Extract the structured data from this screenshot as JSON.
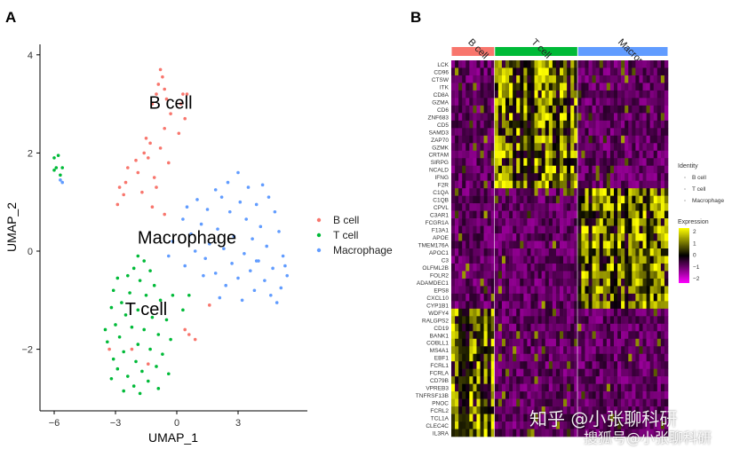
{
  "panels": {
    "a": "A",
    "b": "B"
  },
  "watermark": {
    "line1": "知乎 @小张聊科研",
    "line2": "搜狐号@小张聊科研"
  },
  "chart_data": [
    {
      "type": "scatter",
      "xlabel": "UMAP_1",
      "ylabel": "UMAP_2",
      "xlim": [
        -6.7,
        6.4
      ],
      "ylim": [
        -3.3,
        4.0
      ],
      "xticks": [
        -6,
        -3,
        0,
        3
      ],
      "yticks": [
        -2,
        0,
        2,
        4
      ],
      "legend_position": "right",
      "grid": false,
      "annotations": [
        {
          "text": "B cell",
          "x": -0.3,
          "y": 2.9
        },
        {
          "text": "Macrophage",
          "x": 0.5,
          "y": 0.15
        },
        {
          "text": "T cell",
          "x": -1.5,
          "y": -1.3
        }
      ],
      "series": [
        {
          "name": "B cell",
          "color": "#F8766D",
          "points": [
            [
              -0.8,
              3.7
            ],
            [
              -0.7,
              3.55
            ],
            [
              -0.9,
              3.4
            ],
            [
              -0.6,
              3.3
            ],
            [
              -1.0,
              3.2
            ],
            [
              -0.5,
              3.1
            ],
            [
              0.3,
              3.2
            ],
            [
              0.5,
              3.2
            ],
            [
              0.2,
              3.0
            ],
            [
              -1.2,
              3.0
            ],
            [
              -0.3,
              2.8
            ],
            [
              0.4,
              2.7
            ],
            [
              -0.6,
              2.5
            ],
            [
              0.1,
              2.4
            ],
            [
              -1.5,
              2.3
            ],
            [
              -1.3,
              2.2
            ],
            [
              -0.8,
              2.1
            ],
            [
              -1.4,
              1.9
            ],
            [
              -0.4,
              1.8
            ],
            [
              -2.0,
              1.85
            ],
            [
              -2.4,
              1.7
            ],
            [
              -1.9,
              1.6
            ],
            [
              -1.1,
              1.5
            ],
            [
              -2.8,
              1.3
            ],
            [
              -2.6,
              1.15
            ],
            [
              -1.7,
              1.2
            ],
            [
              -1.0,
              1.3
            ],
            [
              -2.9,
              0.95
            ],
            [
              -1.2,
              0.9
            ],
            [
              -0.6,
              0.75
            ],
            [
              -3.3,
              -2.0
            ],
            [
              -2.2,
              -2.0
            ],
            [
              -1.4,
              -2.3
            ],
            [
              1.6,
              -1.1
            ],
            [
              0.4,
              -1.6
            ],
            [
              0.9,
              -1.8
            ],
            [
              0.6,
              -1.7
            ],
            [
              -2.5,
              1.4
            ],
            [
              -1.6,
              2.0
            ]
          ]
        },
        {
          "name": "T cell",
          "color": "#00BA38",
          "points": [
            [
              -6.0,
              1.9
            ],
            [
              -5.8,
              1.95
            ],
            [
              -5.9,
              1.7
            ],
            [
              -6.0,
              1.65
            ],
            [
              -5.6,
              1.7
            ],
            [
              -5.7,
              1.55
            ],
            [
              -1.9,
              -0.1
            ],
            [
              -1.6,
              -0.2
            ],
            [
              -2.1,
              -0.35
            ],
            [
              -1.3,
              -0.4
            ],
            [
              -2.4,
              -0.5
            ],
            [
              -1.8,
              -0.6
            ],
            [
              -2.9,
              -0.55
            ],
            [
              -1.1,
              -0.7
            ],
            [
              -3.1,
              -0.8
            ],
            [
              -2.3,
              -0.85
            ],
            [
              -1.5,
              -0.9
            ],
            [
              -0.8,
              -1.0
            ],
            [
              -2.7,
              -1.05
            ],
            [
              -3.2,
              -1.15
            ],
            [
              -1.9,
              -1.2
            ],
            [
              -2.5,
              -1.3
            ],
            [
              -1.2,
              -1.35
            ],
            [
              -0.5,
              -1.4
            ],
            [
              -3.0,
              -1.5
            ],
            [
              -2.2,
              -1.55
            ],
            [
              -1.6,
              -1.6
            ],
            [
              -0.9,
              -1.7
            ],
            [
              -2.8,
              -1.75
            ],
            [
              -0.3,
              -1.8
            ],
            [
              -3.4,
              -1.85
            ],
            [
              -1.9,
              -1.9
            ],
            [
              -1.3,
              -2.0
            ],
            [
              -2.6,
              -2.05
            ],
            [
              -0.7,
              -2.1
            ],
            [
              -3.1,
              -2.2
            ],
            [
              -2.0,
              -2.25
            ],
            [
              -1.0,
              -2.35
            ],
            [
              -2.9,
              -2.4
            ],
            [
              -1.7,
              -2.45
            ],
            [
              -0.4,
              -2.5
            ],
            [
              -2.4,
              -2.55
            ],
            [
              -3.2,
              -2.6
            ],
            [
              -1.4,
              -2.65
            ],
            [
              -2.1,
              -2.75
            ],
            [
              -0.9,
              -2.8
            ],
            [
              -1.8,
              -2.9
            ],
            [
              -2.6,
              -2.85
            ],
            [
              0.3,
              -1.2
            ],
            [
              0.6,
              -0.9
            ],
            [
              -0.2,
              -0.9
            ],
            [
              -3.5,
              -1.6
            ]
          ]
        },
        {
          "name": "Macrophage",
          "color": "#619CFF",
          "points": [
            [
              -5.7,
              1.45
            ],
            [
              -5.6,
              1.4
            ],
            [
              3.0,
              1.6
            ],
            [
              2.5,
              1.4
            ],
            [
              4.2,
              1.35
            ],
            [
              3.5,
              1.3
            ],
            [
              1.9,
              1.25
            ],
            [
              2.2,
              1.1
            ],
            [
              4.5,
              1.1
            ],
            [
              1.0,
              1.05
            ],
            [
              3.1,
              1.0
            ],
            [
              3.9,
              0.95
            ],
            [
              0.5,
              0.9
            ],
            [
              1.5,
              0.85
            ],
            [
              2.6,
              0.8
            ],
            [
              4.8,
              0.8
            ],
            [
              0.3,
              0.65
            ],
            [
              3.4,
              0.65
            ],
            [
              1.2,
              0.55
            ],
            [
              4.1,
              0.5
            ],
            [
              2.0,
              0.45
            ],
            [
              5.0,
              0.4
            ],
            [
              0.7,
              0.35
            ],
            [
              2.8,
              0.3
            ],
            [
              3.7,
              0.25
            ],
            [
              -0.2,
              0.2
            ],
            [
              1.6,
              0.15
            ],
            [
              4.4,
              0.1
            ],
            [
              2.3,
              0.05
            ],
            [
              0.9,
              0.0
            ],
            [
              3.3,
              -0.05
            ],
            [
              5.2,
              -0.1
            ],
            [
              -0.4,
              -0.1
            ],
            [
              1.4,
              -0.15
            ],
            [
              4.0,
              -0.2
            ],
            [
              2.7,
              -0.25
            ],
            [
              0.4,
              -0.3
            ],
            [
              4.7,
              -0.35
            ],
            [
              3.6,
              -0.4
            ],
            [
              1.9,
              -0.45
            ],
            [
              5.4,
              -0.5
            ],
            [
              3.0,
              -0.55
            ],
            [
              4.3,
              -0.6
            ],
            [
              2.4,
              -0.7
            ],
            [
              5.1,
              -0.75
            ],
            [
              3.8,
              -0.8
            ],
            [
              4.6,
              -0.9
            ],
            [
              3.2,
              -1.0
            ],
            [
              4.9,
              -1.05
            ],
            [
              1.3,
              -0.5
            ],
            [
              2.1,
              -0.95
            ],
            [
              3.9,
              -0.2
            ],
            [
              5.3,
              -0.3
            ]
          ]
        }
      ]
    },
    {
      "type": "heatmap",
      "groups": [
        {
          "name": "B cell",
          "color": "#F8766D",
          "cells": 12
        },
        {
          "name": "T cell",
          "color": "#00BA38",
          "cells": 23
        },
        {
          "name": "Macrophage",
          "color": "#619CFF",
          "cells": 25
        }
      ],
      "genes": [
        "LCK",
        "CD96",
        "CTSW",
        "ITK",
        "CD8A",
        "GZMA",
        "CD6",
        "ZNF683",
        "CD5",
        "SAMD3",
        "ZAP70",
        "GZMK",
        "CRTAM",
        "SIRPG",
        "NCALD",
        "IFNG",
        "F2R",
        "C1QA",
        "C1QB",
        "CPVL",
        "C3AR1",
        "FCGR1A",
        "F13A1",
        "APOE",
        "TMEM176A",
        "APOC1",
        "C3",
        "OLFML2B",
        "FOLR2",
        "ADAMDEC1",
        "EPS8",
        "CXCL10",
        "CYP1B1",
        "WDFY4",
        "RALGPS2",
        "CD19",
        "BANK1",
        "COBLL1",
        "MS4A1",
        "EBF1",
        "FCRL1",
        "FCRLA",
        "CD79B",
        "VPREB3",
        "TNFRSF13B",
        "PNOC",
        "FCRL2",
        "TCL1A",
        "CLEC4C",
        "IL3RA"
      ],
      "gene_marker_group": [
        "T cell x17",
        "Macrophage x16",
        "B cell x17"
      ],
      "legend_identity_title": "Identity",
      "legend_expression_title": "Expression",
      "expression_ticks": [
        "2",
        "1",
        "0",
        "−1",
        "−2"
      ],
      "color_scale": [
        "#FF00FF",
        "#000000",
        "#FFFF00"
      ],
      "range": [
        -2.5,
        2.5
      ]
    }
  ]
}
